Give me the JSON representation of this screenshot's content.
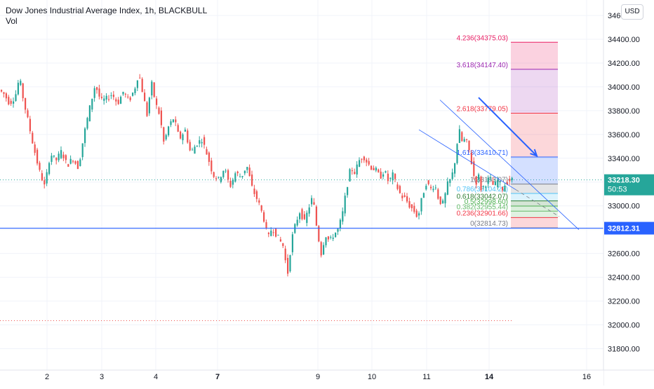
{
  "header": {
    "title": "Dow Jones Industrial Average Index, 1h, BLACKBULL",
    "indicator": "Vol",
    "currency": "USD"
  },
  "colors": {
    "up": "#26a69a",
    "down": "#ef5350",
    "hline": "#2962ff",
    "channel": "#2962ff",
    "arrow": "#2962ff",
    "price_badge": "#2962ff",
    "level_badge": "#2962ff"
  },
  "chart_data": {
    "type": "candlestick",
    "title": "Dow Jones Industrial Average Index, 1h, BLACKBULL",
    "y_axis": {
      "ticks": [
        34600,
        34400,
        34200,
        34000,
        33800,
        33600,
        33400,
        33200,
        33000,
        32800,
        32600,
        32400,
        32200,
        32000,
        31800
      ],
      "tick_labels": [
        "34600.00",
        "34400.00",
        "34200.00",
        "34000.00",
        "33800.00",
        "33600.00",
        "33400.00",
        "33200.00",
        "33000.00",
        "32800.00",
        "32600.00",
        "32400.00",
        "32200.00",
        "32000.00",
        "31800.00"
      ],
      "range": [
        31620,
        34730
      ]
    },
    "x_axis": {
      "labels": [
        "2",
        "3",
        "4",
        "7",
        "9",
        "10",
        "11",
        "14",
        "16"
      ],
      "bold_labels": [
        "7",
        "14"
      ]
    },
    "price_path": [
      [
        0,
        33980
      ],
      [
        8,
        33940
      ],
      [
        16,
        33860
      ],
      [
        24,
        33920
      ],
      [
        30,
        34080
      ],
      [
        36,
        33880
      ],
      [
        42,
        33720
      ],
      [
        50,
        33500
      ],
      [
        58,
        33300
      ],
      [
        66,
        33160
      ],
      [
        74,
        33440
      ],
      [
        82,
        33380
      ],
      [
        90,
        33460
      ],
      [
        98,
        33340
      ],
      [
        106,
        33400
      ],
      [
        114,
        33320
      ],
      [
        122,
        33600
      ],
      [
        130,
        33820
      ],
      [
        138,
        34020
      ],
      [
        146,
        33880
      ],
      [
        154,
        33900
      ],
      [
        162,
        33940
      ],
      [
        170,
        33860
      ],
      [
        178,
        33960
      ],
      [
        186,
        33880
      ],
      [
        194,
        33980
      ],
      [
        200,
        34120
      ],
      [
        206,
        33940
      ],
      [
        212,
        33760
      ],
      [
        218,
        34040
      ],
      [
        224,
        33860
      ],
      [
        230,
        33760
      ],
      [
        236,
        33520
      ],
      [
        242,
        33660
      ],
      [
        250,
        33740
      ],
      [
        258,
        33560
      ],
      [
        266,
        33640
      ],
      [
        274,
        33440
      ],
      [
        282,
        33520
      ],
      [
        290,
        33560
      ],
      [
        298,
        33420
      ],
      [
        306,
        33260
      ],
      [
        314,
        33220
      ],
      [
        322,
        33320
      ],
      [
        330,
        33160
      ],
      [
        338,
        33280
      ],
      [
        346,
        33240
      ],
      [
        354,
        33340
      ],
      [
        362,
        33140
      ],
      [
        370,
        33040
      ],
      [
        378,
        32900
      ],
      [
        384,
        32720
      ],
      [
        390,
        32820
      ],
      [
        398,
        32740
      ],
      [
        406,
        32660
      ],
      [
        412,
        32420
      ],
      [
        418,
        32720
      ],
      [
        424,
        32860
      ],
      [
        430,
        32960
      ],
      [
        436,
        32860
      ],
      [
        442,
        32980
      ],
      [
        448,
        33080
      ],
      [
        454,
        32800
      ],
      [
        460,
        32600
      ],
      [
        466,
        32760
      ],
      [
        472,
        32700
      ],
      [
        478,
        32760
      ],
      [
        484,
        32800
      ],
      [
        490,
        32920
      ],
      [
        496,
        33140
      ],
      [
        502,
        33320
      ],
      [
        508,
        33280
      ],
      [
        514,
        33380
      ],
      [
        520,
        33420
      ],
      [
        526,
        33360
      ],
      [
        532,
        33320
      ],
      [
        538,
        33300
      ],
      [
        544,
        33240
      ],
      [
        550,
        33300
      ],
      [
        556,
        33200
      ],
      [
        562,
        33260
      ],
      [
        568,
        33160
      ],
      [
        574,
        33080
      ],
      [
        580,
        33060
      ],
      [
        586,
        33000
      ],
      [
        592,
        32960
      ],
      [
        598,
        32900
      ],
      [
        604,
        33080
      ],
      [
        610,
        33200
      ],
      [
        616,
        33140
      ],
      [
        622,
        33180
      ],
      [
        628,
        33040
      ],
      [
        634,
        33020
      ],
      [
        640,
        33180
      ],
      [
        646,
        33240
      ],
      [
        652,
        33420
      ],
      [
        656,
        33660
      ],
      [
        660,
        33540
      ],
      [
        666,
        33560
      ],
      [
        672,
        33440
      ],
      [
        676,
        33300
      ],
      [
        680,
        33180
      ],
      [
        684,
        33260
      ],
      [
        688,
        33140
      ],
      [
        694,
        33180
      ],
      [
        700,
        33240
      ],
      [
        706,
        33160
      ],
      [
        712,
        33220
      ],
      [
        718,
        33140
      ],
      [
        724,
        33200
      ],
      [
        730,
        33218
      ]
    ],
    "horizontal_lines": [
      {
        "price": 32812.31,
        "label": "32812.31",
        "style": "solid"
      }
    ],
    "last_price": {
      "price": 33218.3,
      "label": "33218.30",
      "countdown": "50:53"
    },
    "dotted_levels": [
      {
        "price": 33218.3
      },
      {
        "price": 32035
      }
    ],
    "fib_extension": {
      "x_range": [
        "dot",
        "bar"
      ],
      "levels": [
        {
          "ratio": "4.236",
          "price": "34375.03",
          "label": "4.236(34375.03)",
          "color": "#e91e63"
        },
        {
          "ratio": "3.618",
          "price": "34147.40",
          "label": "3.618(34147.40)",
          "color": "#9c27b0"
        },
        {
          "ratio": "2.618",
          "price": "33779.05",
          "label": "2.618(33779.05)",
          "color": "#f23645"
        },
        {
          "ratio": "1.618",
          "price": "33410.71",
          "label": "1.618(33410.71)",
          "color": "#2962ff"
        },
        {
          "ratio": "1",
          "price": "33183.07",
          "label": "1(33183.07)",
          "color": "#787b86"
        },
        {
          "ratio": "0.786",
          "price": "33104.27",
          "label": "0.786(33104.27)",
          "color": "#4fc3f7"
        },
        {
          "ratio": "0.618",
          "price": "33042.07",
          "label": "0.618(33042.07)",
          "color": "#2e7d32"
        },
        {
          "ratio": "0.5",
          "price": "32998.60",
          "label": "0.5(32998.60)",
          "color": "#4caf50"
        },
        {
          "ratio": "0.382",
          "price": "32955.44",
          "label": "0.382(32955.44)",
          "color": "#66bb6a"
        },
        {
          "ratio": "0.236",
          "price": "32901.66",
          "label": "0.236(32901.66)",
          "color": "#f23645"
        },
        {
          "ratio": "0",
          "price": "32814.73",
          "label": "0(32814.73)",
          "color": "#787b86"
        }
      ]
    },
    "channel_lines": [
      {
        "from": [
          627,
          33890
        ],
        "to": [
          825,
          32800
        ]
      },
      {
        "from": [
          597,
          33640
        ],
        "to": [
          797,
          32910
        ],
        "dashed_tail": true
      }
    ],
    "arrow": {
      "from": [
        682,
        33910
      ],
      "to": [
        765,
        33420
      ]
    },
    "grid": true,
    "legend": "top-left"
  }
}
